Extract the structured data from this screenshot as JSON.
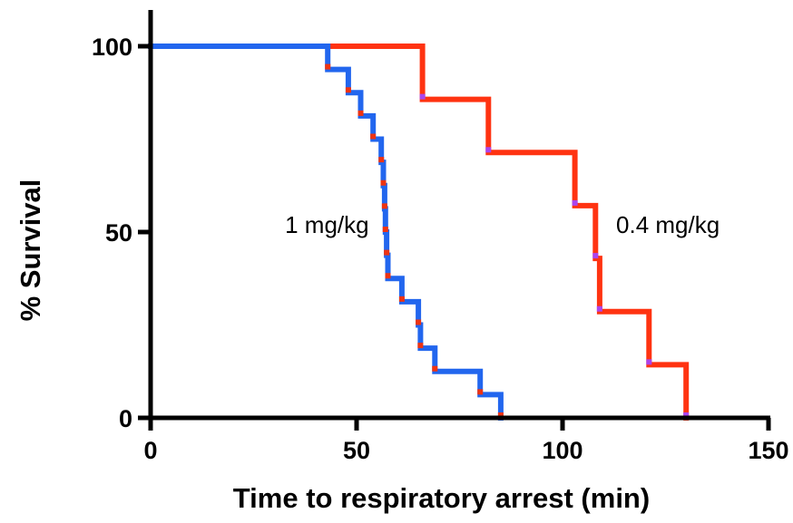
{
  "chart_data": {
    "type": "line",
    "step": true,
    "xlabel": "Time to respiratory arrest (min)",
    "ylabel": "% Survival",
    "xlim": [
      0,
      150
    ],
    "ylim": [
      0,
      100
    ],
    "x_ticks": [
      0,
      50,
      100,
      150
    ],
    "y_ticks": [
      0,
      50,
      100
    ],
    "grid": false,
    "series": [
      {
        "name": "1 mg/kg",
        "color": "#2266ee",
        "censor_color": "#ee3311",
        "points": [
          [
            0,
            100
          ],
          [
            43,
            100
          ],
          [
            43,
            93.75
          ],
          [
            48,
            93.75
          ],
          [
            48,
            87.5
          ],
          [
            51,
            87.5
          ],
          [
            51,
            81.25
          ],
          [
            54,
            81.25
          ],
          [
            54,
            75
          ],
          [
            56,
            75
          ],
          [
            56,
            68.75
          ],
          [
            56.5,
            68.75
          ],
          [
            56.5,
            62.5
          ],
          [
            56.8,
            62.5
          ],
          [
            56.8,
            56.25
          ],
          [
            57,
            56.25
          ],
          [
            57,
            50
          ],
          [
            57.3,
            50
          ],
          [
            57.3,
            43.75
          ],
          [
            57.6,
            43.75
          ],
          [
            57.6,
            37.5
          ],
          [
            61,
            37.5
          ],
          [
            61,
            31.25
          ],
          [
            65,
            31.25
          ],
          [
            65,
            25
          ],
          [
            65.5,
            25
          ],
          [
            65.5,
            18.75
          ],
          [
            69,
            18.75
          ],
          [
            69,
            12.5
          ],
          [
            80,
            12.5
          ],
          [
            80,
            6.25
          ],
          [
            85,
            6.25
          ],
          [
            85,
            0
          ]
        ]
      },
      {
        "name": "0.4 mg/kg",
        "color": "#ff3311",
        "censor_color": "#aa44ee",
        "points": [
          [
            0,
            100
          ],
          [
            66,
            100
          ],
          [
            66,
            85.7
          ],
          [
            82,
            85.7
          ],
          [
            82,
            71.4
          ],
          [
            103,
            71.4
          ],
          [
            103,
            57.1
          ],
          [
            108,
            57.1
          ],
          [
            108,
            42.9
          ],
          [
            109,
            42.9
          ],
          [
            109,
            28.6
          ],
          [
            121,
            28.6
          ],
          [
            121,
            14.3
          ],
          [
            130,
            14.3
          ],
          [
            130,
            0
          ]
        ]
      }
    ],
    "annotations": [
      {
        "text": "1 mg/kg",
        "x": 53,
        "y": 52
      },
      {
        "text": "0.4 mg/kg",
        "x": 113,
        "y": 52
      }
    ]
  }
}
